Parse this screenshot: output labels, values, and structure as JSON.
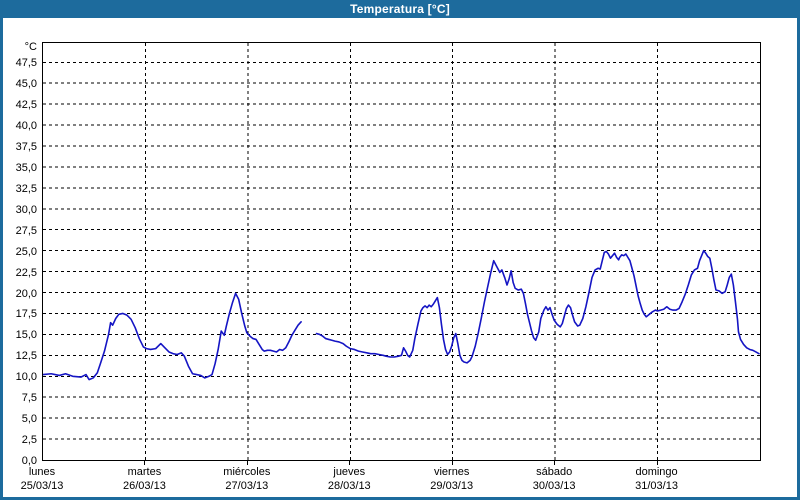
{
  "window": {
    "title": "Temperatura [°C]"
  },
  "colors": {
    "frame_blue": "#1d6b9d",
    "line_blue": "#1515c4",
    "grid": "#000000",
    "plot_bg": "#ffffff",
    "title_text": "#ffffff"
  },
  "chart_data": {
    "type": "line",
    "title": "Temperatura [°C]",
    "y_unit_label": "°C",
    "ylim": [
      0,
      49.8
    ],
    "y_tick_step": 2.5,
    "y_ticks": [
      0,
      2.5,
      5,
      7.5,
      10,
      12.5,
      15,
      17.5,
      20,
      22.5,
      25,
      27.5,
      30,
      32.5,
      35,
      37.5,
      40,
      42.5,
      45,
      47.5
    ],
    "decimal_separator": ",",
    "grid": "dashed",
    "x_days": [
      {
        "name": "lunes",
        "date": "25/03/13"
      },
      {
        "name": "martes",
        "date": "26/03/13"
      },
      {
        "name": "miércoles",
        "date": "27/03/13"
      },
      {
        "name": "jueves",
        "date": "28/03/13"
      },
      {
        "name": "viernes",
        "date": "29/03/13"
      },
      {
        "name": "sábado",
        "date": "30/03/13"
      },
      {
        "name": "domingo",
        "date": "31/03/13"
      }
    ],
    "series": [
      {
        "name": "Temperatura",
        "color": "#1515c4",
        "segments": [
          [
            [
              0,
              10.2
            ],
            [
              0.08,
              10.3
            ],
            [
              0.16,
              10.1
            ],
            [
              0.22,
              10.3
            ],
            [
              0.29,
              10.0
            ],
            [
              0.37,
              9.9
            ],
            [
              0.42,
              10.2
            ],
            [
              0.45,
              9.6
            ],
            [
              0.49,
              9.8
            ],
            [
              0.53,
              10.4
            ],
            [
              0.56,
              11.5
            ],
            [
              0.6,
              13.0
            ],
            [
              0.64,
              15.0
            ],
            [
              0.66,
              16.4
            ],
            [
              0.68,
              16.1
            ],
            [
              0.71,
              16.9
            ],
            [
              0.74,
              17.4
            ],
            [
              0.78,
              17.5
            ],
            [
              0.82,
              17.3
            ],
            [
              0.86,
              16.8
            ],
            [
              0.9,
              15.8
            ],
            [
              0.94,
              14.5
            ],
            [
              0.98,
              13.5
            ],
            [
              1.01,
              13.3
            ],
            [
              1.05,
              13.2
            ],
            [
              1.1,
              13.3
            ],
            [
              1.15,
              13.9
            ],
            [
              1.19,
              13.4
            ],
            [
              1.23,
              12.9
            ],
            [
              1.27,
              12.7
            ],
            [
              1.31,
              12.6
            ],
            [
              1.35,
              12.8
            ],
            [
              1.38,
              12.4
            ],
            [
              1.42,
              11.2
            ],
            [
              1.46,
              10.3
            ],
            [
              1.5,
              10.2
            ],
            [
              1.54,
              10.1
            ],
            [
              1.58,
              9.8
            ],
            [
              1.62,
              10.0
            ],
            [
              1.65,
              10.2
            ],
            [
              1.68,
              11.5
            ],
            [
              1.71,
              13.2
            ],
            [
              1.74,
              15.4
            ],
            [
              1.77,
              14.9
            ],
            [
              1.79,
              16.0
            ],
            [
              1.82,
              17.5
            ],
            [
              1.85,
              18.8
            ],
            [
              1.88,
              19.9
            ],
            [
              1.91,
              19.2
            ],
            [
              1.94,
              17.5
            ],
            [
              1.97,
              16.0
            ],
            [
              1.99,
              15.2
            ],
            [
              2.02,
              14.8
            ],
            [
              2.05,
              14.5
            ],
            [
              2.08,
              14.4
            ],
            [
              2.11,
              13.8
            ],
            [
              2.14,
              13.2
            ],
            [
              2.16,
              13.0
            ],
            [
              2.19,
              13.1
            ],
            [
              2.22,
              13.1
            ],
            [
              2.25,
              13.0
            ],
            [
              2.28,
              12.9
            ],
            [
              2.31,
              13.2
            ],
            [
              2.34,
              13.1
            ],
            [
              2.37,
              13.4
            ],
            [
              2.4,
              14.1
            ],
            [
              2.43,
              14.9
            ],
            [
              2.46,
              15.5
            ],
            [
              2.49,
              16.1
            ],
            [
              2.52,
              16.5
            ]
          ],
          [
            [
              2.67,
              15.1
            ],
            [
              2.7,
              15.0
            ],
            [
              2.73,
              14.8
            ],
            [
              2.76,
              14.5
            ],
            [
              2.79,
              14.4
            ],
            [
              2.82,
              14.3
            ],
            [
              2.85,
              14.2
            ],
            [
              2.89,
              14.1
            ],
            [
              2.93,
              13.9
            ],
            [
              2.96,
              13.6
            ],
            [
              3.0,
              13.3
            ],
            [
              3.04,
              13.2
            ],
            [
              3.08,
              13.0
            ],
            [
              3.12,
              12.9
            ],
            [
              3.16,
              12.8
            ],
            [
              3.2,
              12.7
            ],
            [
              3.24,
              12.7
            ],
            [
              3.28,
              12.6
            ],
            [
              3.32,
              12.5
            ],
            [
              3.35,
              12.4
            ],
            [
              3.39,
              12.3
            ],
            [
              3.43,
              12.3
            ],
            [
              3.47,
              12.4
            ],
            [
              3.5,
              12.5
            ],
            [
              3.52,
              13.4
            ],
            [
              3.54,
              13.0
            ],
            [
              3.56,
              12.5
            ],
            [
              3.58,
              12.3
            ],
            [
              3.61,
              13.1
            ],
            [
              3.63,
              14.5
            ],
            [
              3.66,
              16.2
            ],
            [
              3.69,
              17.8
            ],
            [
              3.71,
              18.2
            ],
            [
              3.73,
              18.4
            ],
            [
              3.75,
              18.2
            ],
            [
              3.77,
              18.5
            ],
            [
              3.79,
              18.3
            ],
            [
              3.81,
              18.6
            ],
            [
              3.83,
              19.0
            ],
            [
              3.85,
              19.4
            ],
            [
              3.87,
              18.2
            ],
            [
              3.89,
              16.2
            ],
            [
              3.91,
              14.4
            ],
            [
              3.93,
              13.2
            ],
            [
              3.95,
              12.6
            ],
            [
              3.97,
              12.9
            ],
            [
              3.99,
              13.6
            ],
            [
              4.01,
              14.6
            ],
            [
              4.03,
              15.1
            ],
            [
              4.05,
              13.9
            ],
            [
              4.07,
              12.5
            ],
            [
              4.09,
              11.9
            ],
            [
              4.11,
              11.7
            ],
            [
              4.14,
              11.6
            ],
            [
              4.17,
              11.9
            ],
            [
              4.19,
              12.4
            ],
            [
              4.22,
              13.6
            ],
            [
              4.25,
              15.2
            ],
            [
              4.28,
              17.0
            ],
            [
              4.31,
              18.9
            ],
            [
              4.34,
              20.6
            ],
            [
              4.37,
              22.3
            ],
            [
              4.4,
              23.8
            ],
            [
              4.43,
              23.1
            ],
            [
              4.46,
              22.4
            ],
            [
              4.48,
              22.7
            ],
            [
              4.51,
              21.7
            ],
            [
              4.53,
              20.9
            ],
            [
              4.55,
              21.6
            ],
            [
              4.57,
              22.6
            ],
            [
              4.59,
              21.2
            ],
            [
              4.61,
              20.5
            ],
            [
              4.64,
              20.3
            ],
            [
              4.67,
              20.4
            ],
            [
              4.69,
              19.9
            ],
            [
              4.71,
              18.7
            ],
            [
              4.73,
              17.4
            ],
            [
              4.75,
              16.4
            ],
            [
              4.77,
              15.4
            ],
            [
              4.79,
              14.6
            ],
            [
              4.81,
              14.3
            ],
            [
              4.84,
              15.3
            ],
            [
              4.86,
              16.9
            ],
            [
              4.89,
              17.9
            ],
            [
              4.91,
              18.3
            ],
            [
              4.93,
              17.9
            ],
            [
              4.95,
              18.2
            ],
            [
              4.97,
              17.4
            ],
            [
              4.99,
              16.7
            ],
            [
              5.02,
              16.2
            ],
            [
              5.05,
              15.9
            ],
            [
              5.07,
              16.3
            ],
            [
              5.09,
              17.2
            ],
            [
              5.11,
              18.1
            ],
            [
              5.13,
              18.5
            ],
            [
              5.15,
              18.2
            ],
            [
              5.17,
              17.3
            ],
            [
              5.19,
              16.5
            ],
            [
              5.22,
              16.0
            ],
            [
              5.24,
              16.1
            ],
            [
              5.27,
              16.9
            ],
            [
              5.3,
              18.3
            ],
            [
              5.33,
              20.0
            ],
            [
              5.36,
              21.8
            ],
            [
              5.39,
              22.7
            ],
            [
              5.42,
              22.9
            ],
            [
              5.44,
              22.8
            ],
            [
              5.46,
              23.8
            ],
            [
              5.48,
              24.8
            ],
            [
              5.5,
              24.9
            ],
            [
              5.52,
              24.6
            ],
            [
              5.54,
              24.1
            ],
            [
              5.56,
              24.4
            ],
            [
              5.58,
              24.7
            ],
            [
              5.6,
              24.2
            ],
            [
              5.62,
              23.9
            ],
            [
              5.63,
              24.2
            ],
            [
              5.65,
              24.5
            ],
            [
              5.67,
              24.4
            ],
            [
              5.69,
              24.6
            ],
            [
              5.71,
              24.2
            ],
            [
              5.73,
              23.8
            ],
            [
              5.75,
              22.9
            ],
            [
              5.77,
              22.0
            ],
            [
              5.79,
              20.8
            ],
            [
              5.81,
              19.6
            ],
            [
              5.83,
              18.7
            ],
            [
              5.85,
              17.9
            ],
            [
              5.87,
              17.4
            ],
            [
              5.89,
              17.1
            ],
            [
              5.92,
              17.4
            ],
            [
              5.95,
              17.7
            ],
            [
              5.98,
              17.9
            ],
            [
              6.0,
              17.8
            ],
            [
              6.03,
              17.9
            ],
            [
              6.06,
              18.0
            ],
            [
              6.09,
              18.3
            ],
            [
              6.12,
              18.0
            ],
            [
              6.15,
              17.9
            ],
            [
              6.18,
              17.9
            ],
            [
              6.21,
              18.1
            ],
            [
              6.24,
              18.9
            ],
            [
              6.27,
              19.8
            ],
            [
              6.3,
              20.9
            ],
            [
              6.33,
              22.1
            ],
            [
              6.36,
              22.7
            ],
            [
              6.39,
              22.9
            ],
            [
              6.41,
              23.8
            ],
            [
              6.43,
              24.4
            ],
            [
              6.45,
              25.0
            ],
            [
              6.47,
              24.7
            ],
            [
              6.49,
              24.3
            ],
            [
              6.51,
              24.1
            ],
            [
              6.53,
              22.9
            ],
            [
              6.55,
              21.5
            ],
            [
              6.57,
              20.3
            ],
            [
              6.6,
              20.2
            ],
            [
              6.63,
              19.9
            ],
            [
              6.66,
              20.1
            ],
            [
              6.68,
              20.9
            ],
            [
              6.7,
              21.8
            ],
            [
              6.72,
              22.2
            ],
            [
              6.74,
              20.9
            ],
            [
              6.76,
              18.9
            ],
            [
              6.78,
              16.8
            ],
            [
              6.79,
              15.3
            ],
            [
              6.81,
              14.4
            ],
            [
              6.84,
              13.8
            ],
            [
              6.87,
              13.4
            ],
            [
              6.9,
              13.2
            ],
            [
              6.93,
              13.1
            ],
            [
              6.96,
              12.9
            ],
            [
              6.99,
              12.7
            ]
          ]
        ]
      }
    ]
  }
}
